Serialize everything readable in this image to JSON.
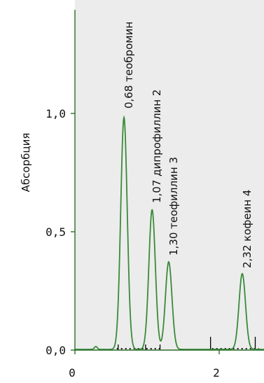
{
  "chart_data": {
    "type": "line",
    "title": "",
    "xlabel": "",
    "ylabel": "Абсорбция",
    "xlim": [
      0,
      2.7
    ],
    "ylim": [
      0,
      1.35
    ],
    "x_ticks": [
      {
        "value": 0,
        "label": "0"
      },
      {
        "value": 2,
        "label": "2"
      }
    ],
    "y_ticks": [
      {
        "value": 0.0,
        "label": "0,0"
      },
      {
        "value": 0.5,
        "label": "0,5"
      },
      {
        "value": 1.0,
        "label": "1,0"
      }
    ],
    "grid": false,
    "colors": {
      "plot_background": "#ececec",
      "trace": "#3a8a3a",
      "axis": "#2a6e2a",
      "baseline_dots": "#1a1a1a",
      "integration_marks": "#000000"
    },
    "peaks": [
      {
        "x": 0.68,
        "height": 0.98,
        "label": "0,68 теобромин"
      },
      {
        "x": 1.07,
        "height": 0.59,
        "label": "1,07 дипрофиллин  2"
      },
      {
        "x": 1.3,
        "height": 0.37,
        "label": "1,30 теофиллин  3"
      },
      {
        "x": 2.32,
        "height": 0.32,
        "label": "2,32 кофеин  4"
      }
    ],
    "minor_peaks": [
      {
        "x": 0.29,
        "height": 0.012
      }
    ],
    "integration_marks": [
      0.6,
      0.98,
      1.18,
      1.88,
      2.5
    ]
  }
}
